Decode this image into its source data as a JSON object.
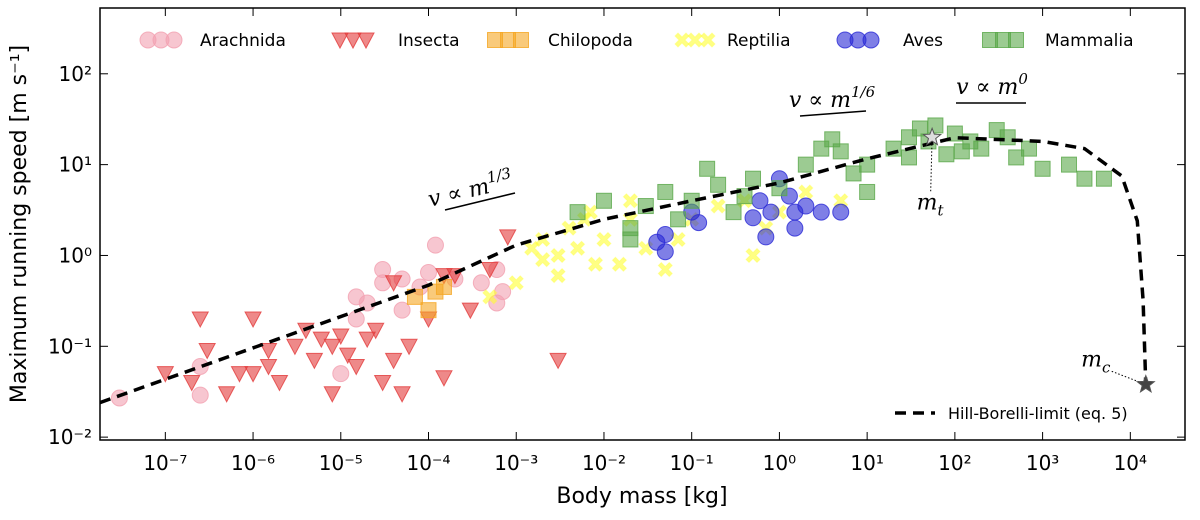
{
  "chart_data": {
    "type": "scatter",
    "xlabel": "Body mass [kg]",
    "ylabel": "Maximum running speed [m s⁻¹]",
    "xscale": "log",
    "yscale": "log",
    "xlim": [
      1.8e-08,
      42000
    ],
    "ylim": [
      0.0093,
      530
    ],
    "xticks": [
      {
        "value": 1e-07,
        "label": "10⁻⁷"
      },
      {
        "value": 1e-06,
        "label": "10⁻⁶"
      },
      {
        "value": 1e-05,
        "label": "10⁻⁵"
      },
      {
        "value": 0.0001,
        "label": "10⁻⁴"
      },
      {
        "value": 0.001,
        "label": "10⁻³"
      },
      {
        "value": 0.01,
        "label": "10⁻²"
      },
      {
        "value": 0.1,
        "label": "10⁻¹"
      },
      {
        "value": 1,
        "label": "10⁰"
      },
      {
        "value": 10,
        "label": "10¹"
      },
      {
        "value": 100,
        "label": "10²"
      },
      {
        "value": 1000,
        "label": "10³"
      },
      {
        "value": 10000,
        "label": "10⁴"
      }
    ],
    "yticks": [
      {
        "value": 0.01,
        "label": "10⁻²"
      },
      {
        "value": 0.1,
        "label": "10⁻¹"
      },
      {
        "value": 1,
        "label": "10⁰"
      },
      {
        "value": 10,
        "label": "10¹"
      },
      {
        "value": 100,
        "label": "10²"
      }
    ],
    "legend": "upper center",
    "series": [
      {
        "name": "Arachnida",
        "color": "#f2a0b0",
        "marker": "circle",
        "x": [
          3e-08,
          2.5e-07,
          2.5e-07,
          1e-05,
          1.5e-05,
          2e-05,
          3e-05,
          3e-05,
          5e-05,
          0.0001,
          0.00012,
          5e-05,
          0.0006,
          0.0007,
          0.0004,
          8e-05,
          0.0002,
          1.5e-05,
          0.0006
        ],
        "values": [
          0.027,
          0.029,
          0.06,
          0.05,
          0.2,
          0.3,
          0.5,
          0.7,
          0.55,
          0.65,
          1.3,
          0.25,
          0.7,
          0.4,
          0.5,
          0.45,
          0.55,
          0.35,
          0.3
        ]
      },
      {
        "name": "Insecta",
        "color": "#e23b3b",
        "marker": "triangle-down",
        "x": [
          3e-07,
          5e-07,
          7e-07,
          2.5e-07,
          1e-06,
          1.5e-06,
          2e-06,
          3e-06,
          4e-06,
          5e-06,
          6e-06,
          8e-06,
          1e-05,
          1.2e-05,
          1.5e-05,
          2e-05,
          2.5e-05,
          3e-05,
          4e-05,
          5e-05,
          6e-05,
          0.0001,
          0.00015,
          0.0002,
          0.0003,
          0.0005,
          0.0008,
          0.00015,
          1e-06,
          1e-07,
          0.003,
          4e-05,
          2e-07,
          8e-06,
          1.5e-06
        ],
        "values": [
          0.09,
          0.03,
          0.05,
          0.2,
          0.2,
          0.09,
          0.04,
          0.1,
          0.15,
          0.07,
          0.12,
          0.1,
          0.13,
          0.08,
          0.06,
          0.12,
          0.15,
          0.04,
          0.07,
          0.03,
          0.1,
          0.2,
          0.045,
          0.6,
          0.25,
          0.7,
          1.6,
          0.6,
          0.05,
          0.05,
          0.07,
          0.5,
          0.04,
          0.03,
          0.06
        ]
      },
      {
        "name": "Chilopoda",
        "color": "#f5a623",
        "marker": "square",
        "x": [
          0.0001,
          0.00012,
          7e-05,
          0.00015
        ],
        "values": [
          0.25,
          0.4,
          0.35,
          0.45
        ]
      },
      {
        "name": "Reptilia",
        "color": "#ffff30",
        "marker": "x",
        "x": [
          0.001,
          0.002,
          0.003,
          0.004,
          0.005,
          0.007,
          0.01,
          0.015,
          0.02,
          0.03,
          0.05,
          0.07,
          0.1,
          0.2,
          0.5,
          1,
          2,
          5,
          0.0015,
          0.003,
          0.008,
          0.02,
          0.4,
          0.7,
          0.0005,
          0.002,
          0.006
        ],
        "values": [
          0.5,
          1.5,
          1.0,
          2.0,
          1.2,
          3,
          1.5,
          0.8,
          2.5,
          1.2,
          0.7,
          1.5,
          2.5,
          3.5,
          1.0,
          3,
          5,
          4,
          1.2,
          0.6,
          0.8,
          4,
          4,
          2,
          0.35,
          0.9,
          2.5
        ]
      },
      {
        "name": "Aves",
        "color": "#2a2ad6",
        "marker": "circle",
        "x": [
          0.04,
          0.05,
          0.05,
          0.1,
          0.12,
          0.5,
          0.6,
          0.8,
          1,
          1.3,
          1.5,
          2,
          3,
          5,
          0.7,
          1.5
        ],
        "values": [
          1.4,
          1.7,
          1.1,
          3,
          2.3,
          2.6,
          4,
          3,
          7,
          4.5,
          2,
          3.5,
          3,
          3,
          1.6,
          3
        ]
      },
      {
        "name": "Mammalia",
        "color": "#5aa84a",
        "marker": "square",
        "x": [
          0.005,
          0.01,
          0.02,
          0.03,
          0.05,
          0.07,
          0.1,
          0.15,
          0.2,
          0.4,
          0.5,
          1,
          2,
          3,
          4,
          5,
          10,
          10,
          20,
          30,
          40,
          50,
          60,
          80,
          100,
          150,
          200,
          300,
          500,
          700,
          1000,
          2000,
          3000,
          5000,
          0.3,
          0.02,
          7,
          30,
          120,
          400
        ],
        "values": [
          3,
          4,
          2,
          3.5,
          5,
          2.5,
          4,
          9,
          6,
          4.5,
          7,
          5.5,
          10,
          15,
          19,
          14,
          5,
          10,
          15,
          20,
          25,
          18,
          27,
          13,
          22,
          18,
          15,
          24,
          12,
          15,
          9,
          10,
          7,
          7,
          3,
          1.5,
          8,
          12,
          14,
          20
        ]
      }
    ],
    "line": {
      "name": "Hill-Borelli-limit (eq. 5)",
      "color": "#000000",
      "legend": "lower right",
      "x": [
        1.8e-08,
        0.0001,
        0.001,
        0.01,
        0.1,
        1,
        10,
        100,
        1000,
        3000,
        8000,
        12000,
        14000,
        15000
      ],
      "values": [
        0.024,
        0.47,
        1.3,
        2.5,
        4,
        6.3,
        11.6,
        19.8,
        18,
        15,
        7.5,
        2.4,
        0.32,
        0.037
      ]
    },
    "markers": [
      {
        "text": "m",
        "sub": "t",
        "x": 55,
        "y": 20,
        "color": "#dddddd"
      },
      {
        "text": "m",
        "sub": "c",
        "x": 15000,
        "y": 0.038,
        "color": "#444444"
      }
    ],
    "annotations": [
      {
        "text": "v ∝ m",
        "sup": "1/3"
      },
      {
        "text": "v ∝ m",
        "sup": "1/6"
      },
      {
        "text": "v ∝ m",
        "sup": "0"
      }
    ]
  }
}
